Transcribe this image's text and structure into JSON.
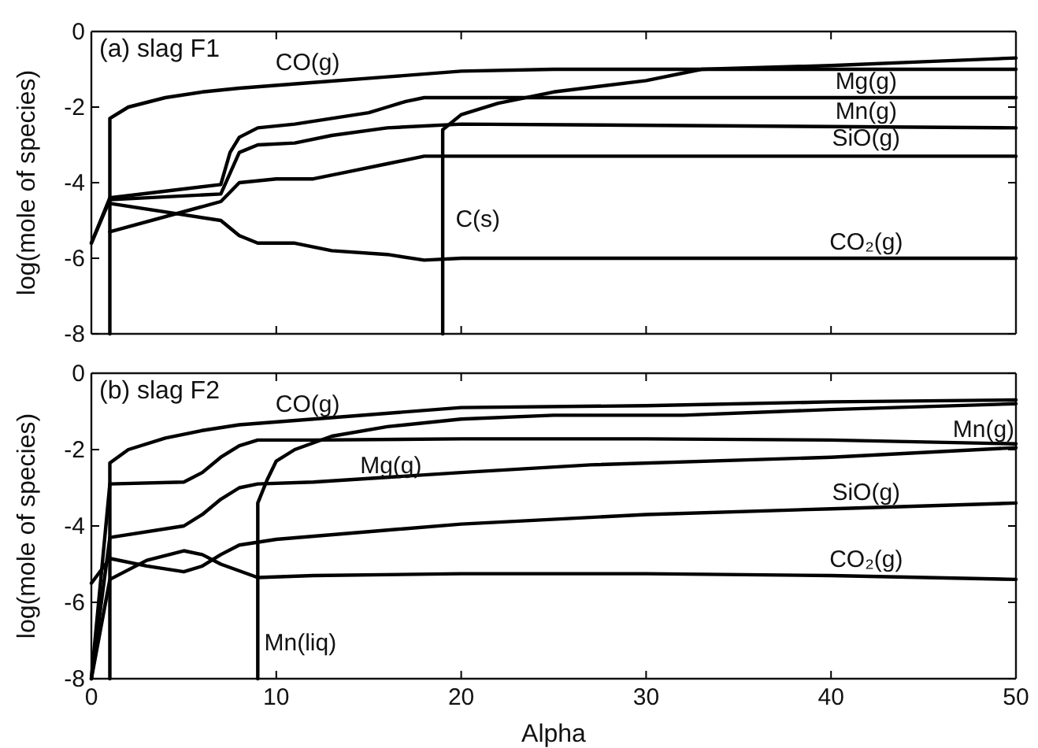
{
  "chart_data": [
    {
      "type": "line",
      "title": "(a) slag F1",
      "ylabel": "log(mole of species)",
      "xlim": [
        0,
        50
      ],
      "ylim": [
        -8,
        0
      ],
      "xticks": [
        0,
        10,
        20,
        30,
        40,
        50
      ],
      "yticks": [
        -8,
        -6,
        -4,
        -2,
        0
      ],
      "tick_labels": "y",
      "grid": false,
      "line_style": "solid",
      "marker": "none",
      "series": [
        {
          "name": "CO(g)",
          "color": "#000000",
          "x": [
            1,
            1,
            2,
            4,
            6,
            8,
            12,
            16,
            20,
            25,
            50
          ],
          "values": [
            -8,
            -2.3,
            -2.0,
            -1.75,
            -1.6,
            -1.5,
            -1.35,
            -1.2,
            -1.05,
            -1.0,
            -1.0
          ]
        },
        {
          "name": "C(s)",
          "color": "#000000",
          "x": [
            19,
            19,
            20,
            22,
            25,
            30,
            33,
            40,
            45,
            50
          ],
          "values": [
            -8,
            -2.6,
            -2.2,
            -1.9,
            -1.6,
            -1.3,
            -1.0,
            -0.9,
            -0.8,
            -0.7
          ]
        },
        {
          "name": "Mg(g)",
          "color": "#000000",
          "x": [
            0,
            1,
            7,
            7.5,
            8,
            9,
            11,
            13,
            15,
            16,
            17,
            18,
            50
          ],
          "values": [
            -5.6,
            -4.4,
            -4.05,
            -3.2,
            -2.8,
            -2.55,
            -2.45,
            -2.3,
            -2.15,
            -2.0,
            -1.85,
            -1.75,
            -1.75
          ]
        },
        {
          "name": "Mn(g)",
          "color": "#000000",
          "x": [
            0,
            1,
            7,
            8,
            9,
            11,
            13,
            16,
            20,
            50
          ],
          "values": [
            -5.6,
            -4.45,
            -4.3,
            -3.2,
            -3.0,
            -2.95,
            -2.75,
            -2.55,
            -2.45,
            -2.55
          ]
        },
        {
          "name": "SiO(g)",
          "color": "#000000",
          "x": [
            1,
            7,
            8,
            10,
            12,
            14,
            16,
            18,
            50
          ],
          "values": [
            -5.3,
            -4.5,
            -4.0,
            -3.9,
            -3.9,
            -3.7,
            -3.5,
            -3.3,
            -3.3
          ]
        },
        {
          "name": "CO₂(g)",
          "color": "#000000",
          "x": [
            1,
            7,
            8,
            9,
            11,
            13,
            16,
            18,
            20,
            50
          ],
          "values": [
            -4.55,
            -5.0,
            -5.4,
            -5.6,
            -5.6,
            -5.8,
            -5.9,
            -6.05,
            -6.0,
            -6.0
          ]
        }
      ]
    },
    {
      "type": "line",
      "title": "(b) slag F2",
      "xlabel": "Alpha",
      "ylabel": "log(mole of species)",
      "xlim": [
        0,
        50
      ],
      "ylim": [
        -8,
        0
      ],
      "xticks": [
        0,
        10,
        20,
        30,
        40,
        50
      ],
      "yticks": [
        -8,
        -6,
        -4,
        -2,
        0
      ],
      "grid": false,
      "line_style": "solid",
      "marker": "none",
      "series": [
        {
          "name": "CO(g)",
          "color": "#000000",
          "x": [
            1,
            1,
            2,
            4,
            6,
            8,
            12,
            20,
            30,
            40,
            50
          ],
          "values": [
            -8,
            -2.35,
            -2.0,
            -1.7,
            -1.5,
            -1.35,
            -1.2,
            -0.9,
            -0.85,
            -0.75,
            -0.7
          ]
        },
        {
          "name": "Mn(liq)",
          "color": "#000000",
          "x": [
            9,
            9,
            9.5,
            10,
            11,
            13,
            16,
            20,
            25,
            32,
            40,
            50
          ],
          "values": [
            -8,
            -3.4,
            -2.8,
            -2.3,
            -2.0,
            -1.65,
            -1.4,
            -1.2,
            -1.1,
            -1.1,
            -0.95,
            -0.8
          ]
        },
        {
          "name": "Mn(g)",
          "color": "#000000",
          "x": [
            0,
            1,
            5,
            6,
            7,
            8,
            9,
            12,
            20,
            30,
            40,
            50
          ],
          "values": [
            -8,
            -2.9,
            -2.85,
            -2.6,
            -2.2,
            -1.9,
            -1.75,
            -1.75,
            -1.72,
            -1.72,
            -1.75,
            -1.85
          ]
        },
        {
          "name": "Mg(g)",
          "color": "#000000",
          "x": [
            0,
            1,
            5,
            6,
            7,
            8,
            9,
            12,
            20,
            27,
            40,
            50
          ],
          "values": [
            -8,
            -4.3,
            -4.0,
            -3.7,
            -3.3,
            -3.0,
            -2.9,
            -2.85,
            -2.6,
            -2.4,
            -2.2,
            -1.95
          ]
        },
        {
          "name": "SiO(g)",
          "color": "#000000",
          "x": [
            0,
            1,
            3,
            5,
            6,
            7,
            8,
            10,
            20,
            30,
            40,
            50
          ],
          "values": [
            -5.5,
            -4.85,
            -5.05,
            -5.2,
            -5.05,
            -4.75,
            -4.5,
            -4.35,
            -3.95,
            -3.7,
            -3.55,
            -3.4
          ]
        },
        {
          "name": "CO₂(g)",
          "color": "#000000",
          "x": [
            0,
            1,
            3,
            5,
            6,
            7,
            9,
            12,
            20,
            30,
            40,
            50
          ],
          "values": [
            -8,
            -5.4,
            -4.9,
            -4.65,
            -4.75,
            -5.0,
            -5.35,
            -5.3,
            -5.25,
            -5.25,
            -5.3,
            -5.4
          ]
        }
      ]
    }
  ]
}
